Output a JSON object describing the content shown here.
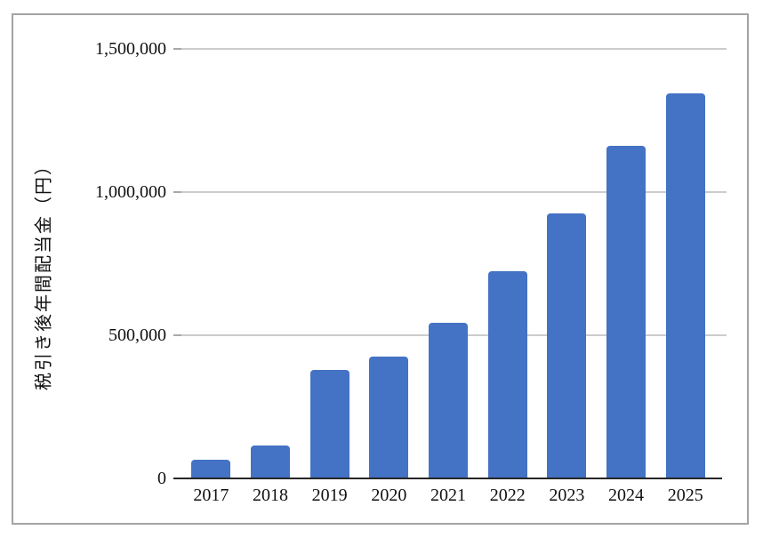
{
  "chart_data": {
    "type": "bar",
    "title": "",
    "xlabel": "",
    "ylabel": "税引き後年間配当金（円）",
    "categories": [
      "2017",
      "2018",
      "2019",
      "2020",
      "2021",
      "2022",
      "2023",
      "2024",
      "2025"
    ],
    "values": [
      65000,
      115000,
      380000,
      425000,
      545000,
      725000,
      925000,
      1160000,
      1345000
    ],
    "ylim": [
      0,
      1500000
    ],
    "yticks": [
      {
        "value": 0,
        "label": "0"
      },
      {
        "value": 500000,
        "label": "500,000"
      },
      {
        "value": 1000000,
        "label": "1,000,000"
      },
      {
        "value": 1500000,
        "label": "1,500,000"
      }
    ],
    "grid": true,
    "legend": "none",
    "colors": {
      "bar": "#4472C4",
      "gridline": "#cccccc",
      "axis": "#262626",
      "frame_border": "#a3a3a3",
      "text": "#111111",
      "background": "#ffffff"
    }
  }
}
